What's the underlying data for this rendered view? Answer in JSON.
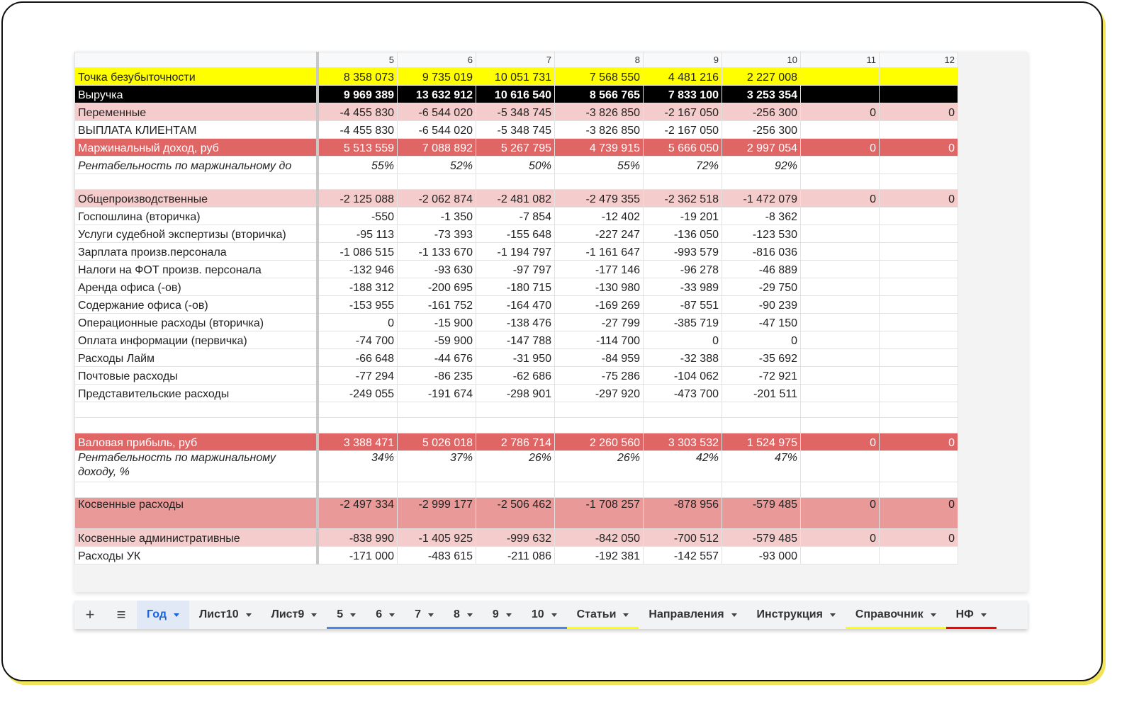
{
  "sheet": {
    "columns": [
      "5",
      "6",
      "7",
      "8",
      "9",
      "10",
      "11",
      "12"
    ],
    "rows": [
      {
        "style": "yellow",
        "label": "Точка безубыточности",
        "values": [
          "8 358 073",
          "9 735 019",
          "10 051 731",
          "7 568 550",
          "4 481 216",
          "2 227 008",
          null,
          null
        ]
      },
      {
        "style": "black",
        "label": "Выручка",
        "values": [
          "9 969 389",
          "13 632 912",
          "10 616 540",
          "8 566 765",
          "7 833 100",
          "3 253 354",
          null,
          null
        ]
      },
      {
        "style": "light",
        "label": "Переменные",
        "values": [
          "-4 455 830",
          "-6 544 020",
          "-5 348 745",
          "-3 826 850",
          "-2 167 050",
          "-256 300",
          "0",
          "0"
        ]
      },
      {
        "style": "plain",
        "label": "ВЫПЛАТА КЛИЕНТАМ",
        "values": [
          "-4 455 830",
          "-6 544 020",
          "-5 348 745",
          "-3 826 850",
          "-2 167 050",
          "-256 300",
          null,
          null
        ]
      },
      {
        "style": "red",
        "label": "Маржинальный доход, руб",
        "values": [
          "5 513 559",
          "7 088 892",
          "5 267 795",
          "4 739 915",
          "5 666 050",
          "2 997 054",
          "0",
          "0"
        ]
      },
      {
        "style": "italic-clip",
        "label": "Рентабельность по маржинальному до",
        "values": [
          "55%",
          "52%",
          "50%",
          "55%",
          "72%",
          "92%",
          null,
          null
        ]
      },
      {
        "style": "blank"
      },
      {
        "style": "light",
        "label": "Общепроизводственные",
        "values": [
          "-2 125 088",
          "-2 062 874",
          "-2 481 082",
          "-2 479 355",
          "-2 362 518",
          "-1 472 079",
          "0",
          "0"
        ]
      },
      {
        "style": "plain",
        "label": "Госпошлина (вторичка)",
        "values": [
          "-550",
          "-1 350",
          "-7 854",
          "-12 402",
          "-19 201",
          "-8 362",
          null,
          null
        ]
      },
      {
        "style": "plain",
        "label": "Услуги судебной экспертизы (вторичка)",
        "values": [
          "-95 113",
          "-73 393",
          "-155 648",
          "-227 247",
          "-136 050",
          "-123 530",
          null,
          null
        ]
      },
      {
        "style": "plain",
        "label": "Зарплата произв.персонала",
        "values": [
          "-1 086 515",
          "-1 133 670",
          "-1 194 797",
          "-1 161 647",
          "-993 579",
          "-816 036",
          null,
          null
        ]
      },
      {
        "style": "plain",
        "label": "Налоги на ФОТ произв. персонала",
        "values": [
          "-132 946",
          "-93 630",
          "-97 797",
          "-177 146",
          "-96 278",
          "-46 889",
          null,
          null
        ]
      },
      {
        "style": "plain",
        "label": "Аренда офиса (-ов)",
        "values": [
          "-188 312",
          "-200 695",
          "-180 715",
          "-130 980",
          "-33 989",
          "-29 750",
          null,
          null
        ]
      },
      {
        "style": "plain",
        "label": "Содержание офиса (-ов)",
        "values": [
          "-153 955",
          "-161 752",
          "-164 470",
          "-169 269",
          "-87 551",
          "-90 239",
          null,
          null
        ]
      },
      {
        "style": "plain",
        "label": "Операционные расходы (вторичка)",
        "values": [
          "0",
          "-15 900",
          "-138 476",
          "-27 799",
          "-385 719",
          "-47 150",
          null,
          null
        ]
      },
      {
        "style": "plain",
        "label": "Оплата информации (первичка)",
        "values": [
          "-74 700",
          "-59 900",
          "-147 788",
          "-114 700",
          "0",
          "0",
          null,
          null
        ]
      },
      {
        "style": "plain",
        "label": "Расходы Лайм",
        "values": [
          "-66 648",
          "-44 676",
          "-31 950",
          "-84 959",
          "-32 388",
          "-35 692",
          null,
          null
        ]
      },
      {
        "style": "plain",
        "label": "Почтовые расходы",
        "values": [
          "-77 294",
          "-86 235",
          "-62 686",
          "-75 286",
          "-104 062",
          "-72 921",
          null,
          null
        ]
      },
      {
        "style": "plain",
        "label": "Представительские расходы",
        "values": [
          "-249 055",
          "-191 674",
          "-298 901",
          "-297 920",
          "-473 700",
          "-201 511",
          null,
          null
        ]
      },
      {
        "style": "blank"
      },
      {
        "style": "blank"
      },
      {
        "style": "red",
        "label": "Валовая прибыль, руб",
        "values": [
          "3 388 471",
          "5 026 018",
          "2 786 714",
          "2 260 560",
          "3 303 532",
          "1 524 975",
          "0",
          "0"
        ]
      },
      {
        "style": "italic",
        "label": "Рентабельность по маржинальному доходу, %",
        "values": [
          "34%",
          "37%",
          "26%",
          "26%",
          "42%",
          "47%",
          null,
          null
        ]
      },
      {
        "style": "blank"
      },
      {
        "style": "mid",
        "label": "Косвенные расходы",
        "values": [
          "-2 497 334",
          "-2 999 177",
          "-2 506 462",
          "-1 708 257",
          "-878 956",
          "-579 485",
          "0",
          "0"
        ]
      },
      {
        "style": "light",
        "label": "Косвенные административные",
        "values": [
          "-838 990",
          "-1 405 925",
          "-999 632",
          "-842 050",
          "-700 512",
          "-579 485",
          "0",
          "0"
        ]
      },
      {
        "style": "plain",
        "label": "Расходы УК",
        "values": [
          "-171 000",
          "-483 615",
          "-211 086",
          "-192 381",
          "-142 557",
          "-93 000",
          null,
          null
        ]
      }
    ]
  },
  "tabs": [
    {
      "name": "Год",
      "active": true,
      "color": null
    },
    {
      "name": "Лист10",
      "color": null
    },
    {
      "name": "Лист9",
      "color": null
    },
    {
      "name": "5",
      "color": "#4a86e8"
    },
    {
      "name": "6",
      "color": "#4a86e8"
    },
    {
      "name": "7",
      "color": "#4a86e8"
    },
    {
      "name": "8",
      "color": "#4a86e8"
    },
    {
      "name": "9",
      "color": "#4a86e8"
    },
    {
      "name": "10",
      "color": "#4a86e8"
    },
    {
      "name": "Статьи",
      "color": "#ffff00"
    },
    {
      "name": "Направления",
      "color": null
    },
    {
      "name": "Инструкция",
      "color": null
    },
    {
      "name": "Справочник",
      "color": "#ffff00"
    },
    {
      "name": "НФ",
      "color": "#ff0000"
    }
  ]
}
